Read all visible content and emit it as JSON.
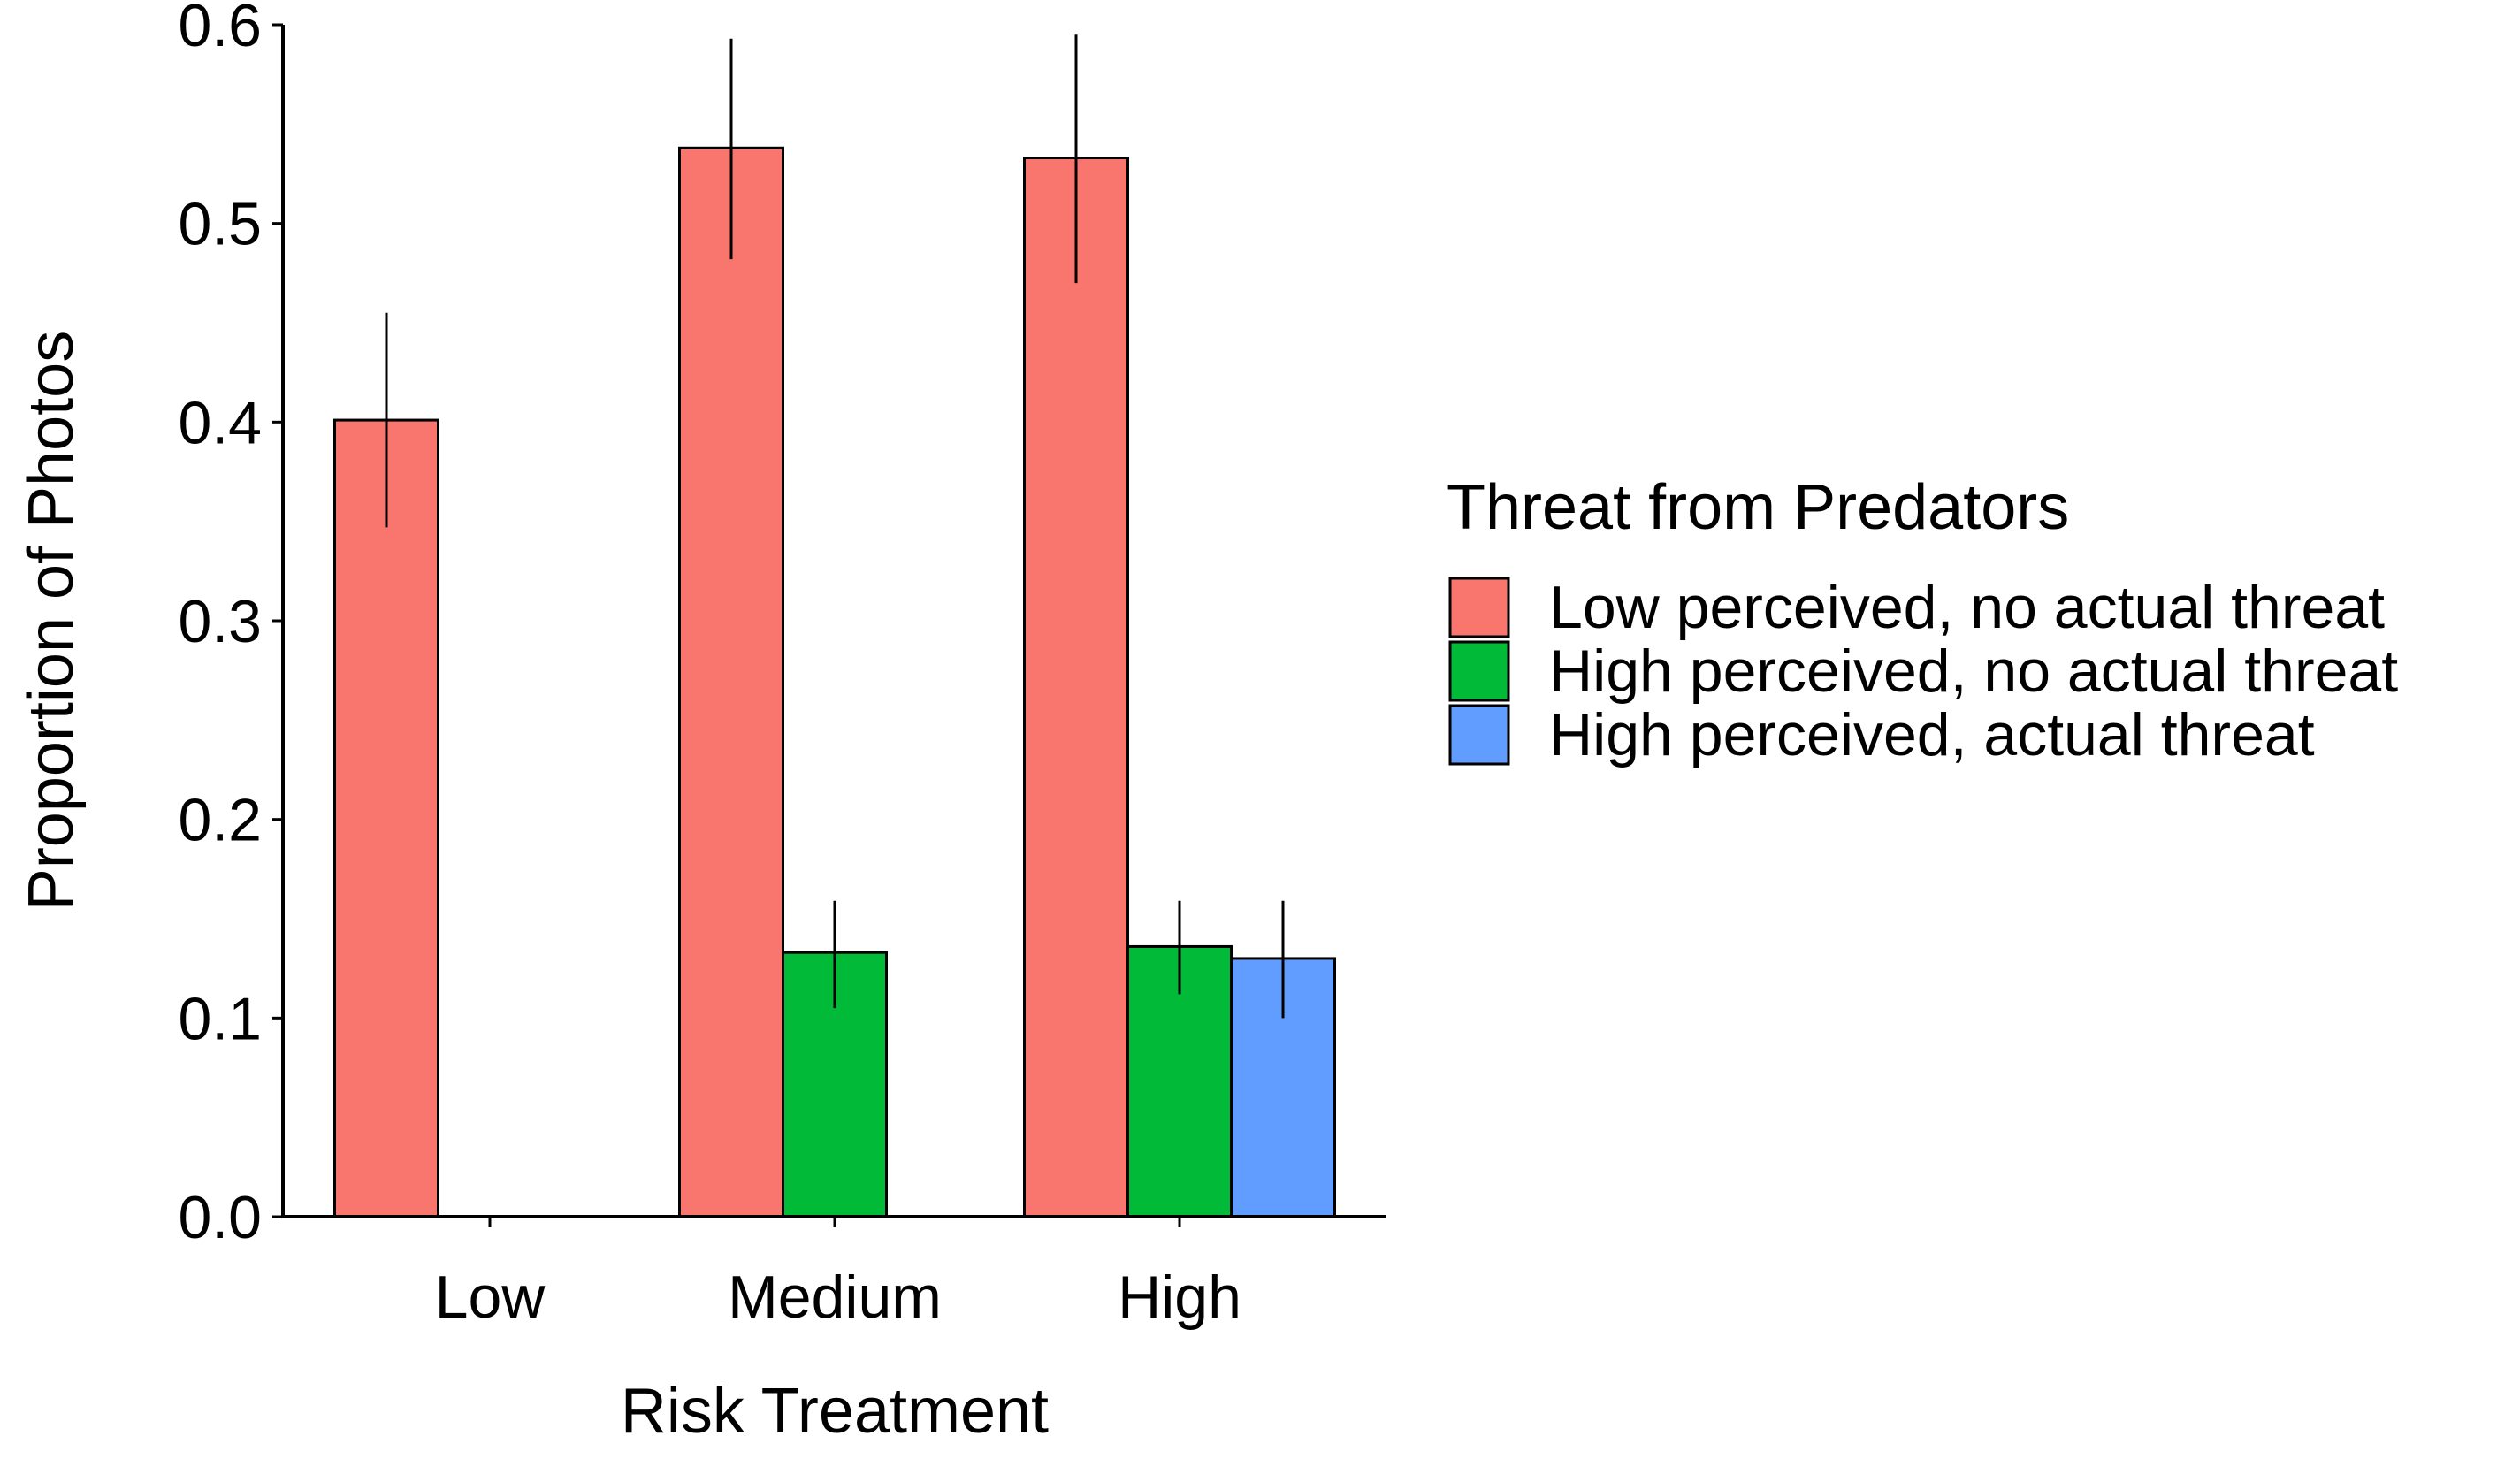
{
  "chart_data": {
    "type": "bar",
    "xlabel": "Risk Treatment",
    "ylabel": "Proportion of Photos",
    "ylim": [
      0,
      0.6
    ],
    "yticks": [
      "0.0",
      "0.1",
      "0.2",
      "0.3",
      "0.4",
      "0.5",
      "0.6"
    ],
    "categories": [
      "Low",
      "Medium",
      "High"
    ],
    "legend": {
      "title": "Threat from Predators",
      "position": "right"
    },
    "grid": false,
    "series": [
      {
        "name": "Low perceived, no actual threat",
        "color": "#F8766D",
        "values": [
          0.401,
          0.538,
          0.533
        ],
        "error_low": [
          0.347,
          0.482,
          0.47
        ],
        "error_high": [
          0.455,
          0.593,
          0.595
        ]
      },
      {
        "name": "High perceived, no actual threat",
        "color": "#00BA38",
        "values": [
          null,
          0.133,
          0.136
        ],
        "error_low": [
          null,
          0.105,
          0.112
        ],
        "error_high": [
          null,
          0.159,
          0.159
        ]
      },
      {
        "name": "High perceived, actual threat",
        "color": "#619CFF",
        "values": [
          null,
          null,
          0.13
        ],
        "error_low": [
          null,
          null,
          0.1
        ],
        "error_high": [
          null,
          null,
          0.159
        ]
      }
    ]
  }
}
